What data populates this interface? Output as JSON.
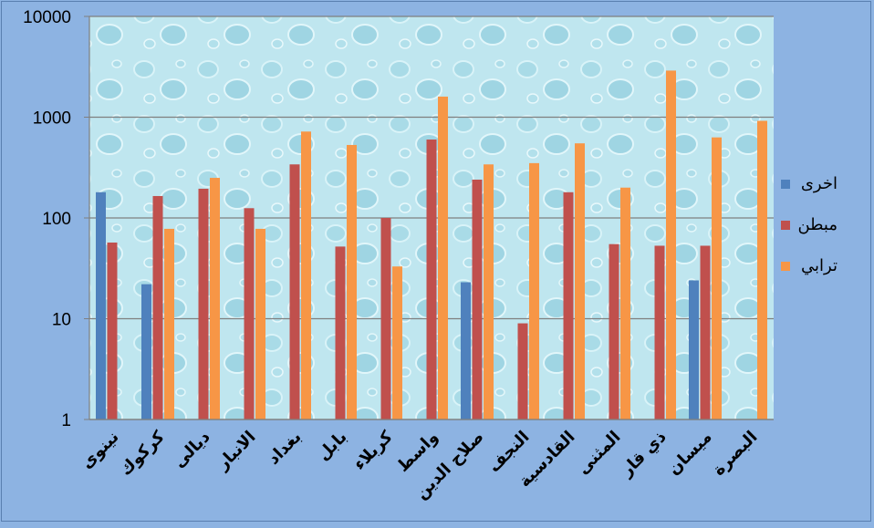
{
  "chart_data": {
    "type": "bar",
    "yscale": "log",
    "ylim": [
      1,
      10000
    ],
    "yticks": [
      "1",
      "10",
      "100",
      "1000",
      "10000"
    ],
    "grid": true,
    "legend_position": "right",
    "categories": [
      "نينوى",
      "كركوك",
      "ديالى",
      "الانبار",
      "بغداد",
      "بابل",
      "كربلاء",
      "واسط",
      "صلاح الدين",
      "النجف",
      "القادسية",
      "المثنى",
      "ذي قار",
      "ميسان",
      "البصرة"
    ],
    "series": [
      {
        "name": "اخرى",
        "color": "#4f81bd",
        "values": [
          180,
          22,
          null,
          null,
          null,
          null,
          null,
          null,
          23,
          null,
          null,
          null,
          null,
          24,
          null
        ]
      },
      {
        "name": "مبطن",
        "color": "#c0504d",
        "values": [
          57,
          165,
          195,
          125,
          340,
          52,
          100,
          600,
          240,
          9,
          180,
          55,
          53,
          53,
          null
        ]
      },
      {
        "name": "ترابي",
        "color": "#f79646",
        "values": [
          null,
          78,
          250,
          78,
          720,
          530,
          33,
          1600,
          340,
          350,
          550,
          200,
          2900,
          630,
          920
        ]
      }
    ]
  }
}
